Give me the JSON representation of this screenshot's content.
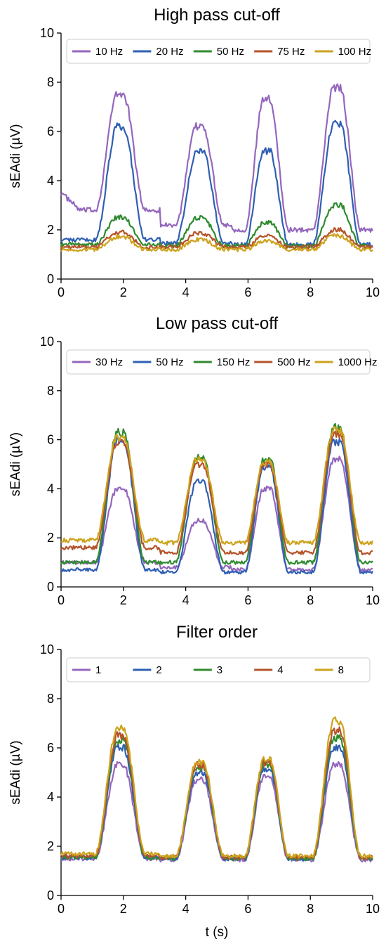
{
  "chart_data": [
    {
      "type": "line",
      "title": "High pass cut-off",
      "xlabel": "",
      "ylabel": "sEAdi (µV)",
      "xlim": [
        0,
        10
      ],
      "ylim": [
        0,
        10
      ],
      "xticks": [
        "0",
        "2",
        "4",
        "6",
        "8",
        "10"
      ],
      "yticks": [
        "0",
        "2",
        "4",
        "6",
        "8",
        "10"
      ],
      "legend": "top",
      "series": [
        {
          "name": "10 Hz",
          "color": "#9467bd",
          "baseline": [
            2.8,
            2.2,
            2.0,
            2.0
          ],
          "peaks": [
            7.5,
            6.2,
            7.3,
            7.8
          ]
        },
        {
          "name": "20 Hz",
          "color": "#2f5fb3",
          "baseline": [
            1.6,
            1.45,
            1.4,
            1.4
          ],
          "peaks": [
            6.2,
            5.2,
            5.2,
            6.3
          ]
        },
        {
          "name": "50 Hz",
          "color": "#2e8b2e",
          "baseline": [
            1.4,
            1.35,
            1.35,
            1.35
          ],
          "peaks": [
            2.5,
            2.5,
            2.3,
            3.0
          ]
        },
        {
          "name": "75 Hz",
          "color": "#b5532a",
          "baseline": [
            1.3,
            1.3,
            1.3,
            1.3
          ],
          "peaks": [
            1.9,
            1.85,
            1.75,
            2.0
          ]
        },
        {
          "name": "100 Hz",
          "color": "#cda21c",
          "baseline": [
            1.2,
            1.2,
            1.2,
            1.2
          ],
          "peaks": [
            1.7,
            1.6,
            1.55,
            1.75
          ]
        }
      ]
    },
    {
      "type": "line",
      "title": "Low pass cut-off",
      "xlabel": "",
      "ylabel": "sEAdi (µV)",
      "xlim": [
        0,
        10
      ],
      "ylim": [
        0,
        10
      ],
      "xticks": [
        "0",
        "2",
        "4",
        "6",
        "8",
        "10"
      ],
      "yticks": [
        "0",
        "2",
        "4",
        "6",
        "8",
        "10"
      ],
      "legend": "top",
      "series": [
        {
          "name": "30 Hz",
          "color": "#9467bd",
          "baseline": [
            1.0,
            0.8,
            0.7,
            0.7
          ],
          "peaks": [
            4.0,
            2.7,
            4.0,
            5.2
          ]
        },
        {
          "name": "50 Hz",
          "color": "#2f5fb3",
          "baseline": [
            0.7,
            0.6,
            0.6,
            0.6
          ],
          "peaks": [
            6.0,
            4.3,
            4.9,
            5.9
          ]
        },
        {
          "name": "150 Hz",
          "color": "#2e8b2e",
          "baseline": [
            1.0,
            1.0,
            1.0,
            1.0
          ],
          "peaks": [
            6.3,
            5.3,
            5.2,
            6.5
          ]
        },
        {
          "name": "500 Hz",
          "color": "#b5532a",
          "baseline": [
            1.6,
            1.4,
            1.4,
            1.4
          ],
          "peaks": [
            5.9,
            5.0,
            5.0,
            6.2
          ]
        },
        {
          "name": "1000 Hz",
          "color": "#cda21c",
          "baseline": [
            1.9,
            1.8,
            1.8,
            1.8
          ],
          "peaks": [
            6.1,
            5.2,
            5.1,
            6.4
          ]
        }
      ]
    },
    {
      "type": "line",
      "title": "Filter order",
      "xlabel": "t (s)",
      "ylabel": "sEAdi (µV)",
      "xlim": [
        0,
        10
      ],
      "ylim": [
        0,
        10
      ],
      "xticks": [
        "0",
        "2",
        "4",
        "6",
        "8",
        "10"
      ],
      "yticks": [
        "0",
        "2",
        "4",
        "6",
        "8",
        "10"
      ],
      "legend": "top",
      "series": [
        {
          "name": "1",
          "color": "#9467bd",
          "baseline": [
            1.5,
            1.45,
            1.45,
            1.45
          ],
          "peaks": [
            5.3,
            4.7,
            4.8,
            5.3
          ]
        },
        {
          "name": "2",
          "color": "#2f5fb3",
          "baseline": [
            1.55,
            1.5,
            1.5,
            1.5
          ],
          "peaks": [
            6.0,
            5.0,
            5.1,
            6.0
          ]
        },
        {
          "name": "3",
          "color": "#2e8b2e",
          "baseline": [
            1.55,
            1.5,
            1.5,
            1.5
          ],
          "peaks": [
            6.3,
            5.2,
            5.3,
            6.4
          ]
        },
        {
          "name": "4",
          "color": "#b5532a",
          "baseline": [
            1.6,
            1.55,
            1.55,
            1.55
          ],
          "peaks": [
            6.5,
            5.3,
            5.4,
            6.7
          ]
        },
        {
          "name": "8",
          "color": "#cda21c",
          "baseline": [
            1.7,
            1.6,
            1.6,
            1.6
          ],
          "peaks": [
            6.8,
            5.4,
            5.5,
            7.1
          ]
        }
      ]
    }
  ],
  "breaths": [
    {
      "center": 1.9,
      "width": 1.0
    },
    {
      "center": 4.45,
      "width": 0.95
    },
    {
      "center": 6.6,
      "width": 0.8
    },
    {
      "center": 8.85,
      "width": 0.95
    }
  ]
}
